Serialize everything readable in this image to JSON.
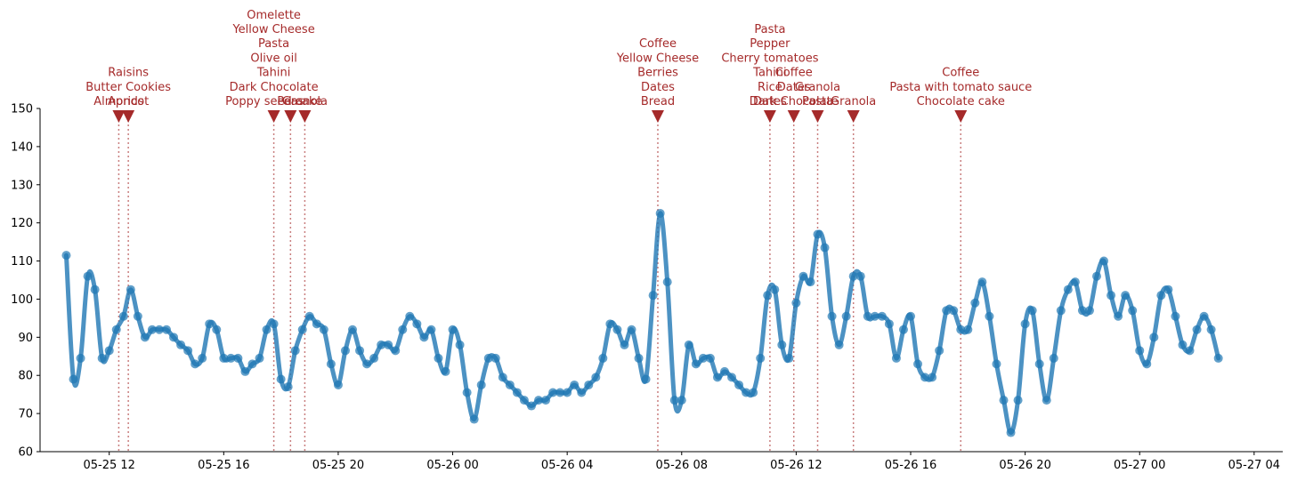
{
  "chart_data": {
    "type": "line",
    "title": "",
    "xlabel": "",
    "ylabel": "",
    "ylim": [
      60,
      150
    ],
    "xlim": [
      "2025-05-25T09:35",
      "2025-05-27T05:00"
    ],
    "grid": false,
    "yticks": [
      "60",
      "70",
      "80",
      "90",
      "100",
      "110",
      "120",
      "130",
      "140",
      "150"
    ],
    "xticks": [
      {
        "t": "2025-05-25T12:00",
        "label": "05-25 12"
      },
      {
        "t": "2025-05-25T16:00",
        "label": "05-25 16"
      },
      {
        "t": "2025-05-25T20:00",
        "label": "05-25 20"
      },
      {
        "t": "2025-05-26T00:00",
        "label": "05-26 00"
      },
      {
        "t": "2025-05-26T04:00",
        "label": "05-26 04"
      },
      {
        "t": "2025-05-26T08:00",
        "label": "05-26 08"
      },
      {
        "t": "2025-05-26T12:00",
        "label": "05-26 12"
      },
      {
        "t": "2025-05-26T16:00",
        "label": "05-26 16"
      },
      {
        "t": "2025-05-26T20:00",
        "label": "05-26 20"
      },
      {
        "t": "2025-05-27T00:00",
        "label": "05-27 00"
      },
      {
        "t": "2025-05-27T04:00",
        "label": "05-27 04"
      }
    ],
    "colors": {
      "line": "#1f77b4",
      "marker": "#a52a2a"
    },
    "series": [
      {
        "x": [
          "2025-05-25T10:30",
          "2025-05-25T10:45",
          "2025-05-25T11:00",
          "2025-05-25T11:15",
          "2025-05-25T11:30",
          "2025-05-25T11:45",
          "2025-05-25T12:00",
          "2025-05-25T12:15",
          "2025-05-25T12:30",
          "2025-05-25T12:45",
          "2025-05-25T13:00",
          "2025-05-25T13:15",
          "2025-05-25T13:30",
          "2025-05-25T13:45",
          "2025-05-25T14:00",
          "2025-05-25T14:15",
          "2025-05-25T14:30",
          "2025-05-25T14:45",
          "2025-05-25T15:00",
          "2025-05-25T15:15",
          "2025-05-25T15:30",
          "2025-05-25T15:45",
          "2025-05-25T16:00",
          "2025-05-25T16:15",
          "2025-05-25T16:30",
          "2025-05-25T16:45",
          "2025-05-25T17:00",
          "2025-05-25T17:15",
          "2025-05-25T17:30",
          "2025-05-25T17:45",
          "2025-05-25T18:00",
          "2025-05-25T18:15",
          "2025-05-25T18:30",
          "2025-05-25T18:45",
          "2025-05-25T19:00",
          "2025-05-25T19:15",
          "2025-05-25T19:30",
          "2025-05-25T19:45",
          "2025-05-25T20:00",
          "2025-05-25T20:15",
          "2025-05-25T20:30",
          "2025-05-25T20:45",
          "2025-05-25T21:00",
          "2025-05-25T21:15",
          "2025-05-25T21:30",
          "2025-05-25T21:45",
          "2025-05-25T22:00",
          "2025-05-25T22:15",
          "2025-05-25T22:30",
          "2025-05-25T22:45",
          "2025-05-25T23:00",
          "2025-05-25T23:15",
          "2025-05-25T23:30",
          "2025-05-25T23:45",
          "2025-05-26T00:00",
          "2025-05-26T00:15",
          "2025-05-26T00:30",
          "2025-05-26T00:45",
          "2025-05-26T01:00",
          "2025-05-26T01:15",
          "2025-05-26T01:30",
          "2025-05-26T01:45",
          "2025-05-26T02:00",
          "2025-05-26T02:15",
          "2025-05-26T02:30",
          "2025-05-26T02:45",
          "2025-05-26T03:00",
          "2025-05-26T03:15",
          "2025-05-26T03:30",
          "2025-05-26T03:45",
          "2025-05-26T04:00",
          "2025-05-26T04:15",
          "2025-05-26T04:30",
          "2025-05-26T04:45",
          "2025-05-26T05:00",
          "2025-05-26T05:15",
          "2025-05-26T05:30",
          "2025-05-26T05:45",
          "2025-05-26T06:00",
          "2025-05-26T06:15",
          "2025-05-26T06:30",
          "2025-05-26T06:45",
          "2025-05-26T07:00",
          "2025-05-26T07:15",
          "2025-05-26T07:30",
          "2025-05-26T07:45",
          "2025-05-26T08:00",
          "2025-05-26T08:15",
          "2025-05-26T08:30",
          "2025-05-26T08:45",
          "2025-05-26T09:00",
          "2025-05-26T09:15",
          "2025-05-26T09:30",
          "2025-05-26T09:45",
          "2025-05-26T10:00",
          "2025-05-26T10:15",
          "2025-05-26T10:30",
          "2025-05-26T10:45",
          "2025-05-26T11:00",
          "2025-05-26T11:15",
          "2025-05-26T11:30",
          "2025-05-26T11:45",
          "2025-05-26T12:00",
          "2025-05-26T12:15",
          "2025-05-26T12:30",
          "2025-05-26T12:45",
          "2025-05-26T13:00",
          "2025-05-26T13:15",
          "2025-05-26T13:30",
          "2025-05-26T13:45",
          "2025-05-26T14:00",
          "2025-05-26T14:15",
          "2025-05-26T14:30",
          "2025-05-26T14:45",
          "2025-05-26T15:00",
          "2025-05-26T15:15",
          "2025-05-26T15:30",
          "2025-05-26T15:45",
          "2025-05-26T16:00",
          "2025-05-26T16:15",
          "2025-05-26T16:30",
          "2025-05-26T16:45",
          "2025-05-26T17:00",
          "2025-05-26T17:15",
          "2025-05-26T17:30",
          "2025-05-26T17:45",
          "2025-05-26T18:00",
          "2025-05-26T18:15",
          "2025-05-26T18:30",
          "2025-05-26T18:45",
          "2025-05-26T19:00",
          "2025-05-26T19:15",
          "2025-05-26T19:30",
          "2025-05-26T19:45",
          "2025-05-26T20:00",
          "2025-05-26T20:15",
          "2025-05-26T20:30",
          "2025-05-26T20:45",
          "2025-05-26T21:00",
          "2025-05-26T21:15",
          "2025-05-26T21:30",
          "2025-05-26T21:45",
          "2025-05-26T22:00",
          "2025-05-26T22:15",
          "2025-05-26T22:30",
          "2025-05-26T22:45",
          "2025-05-26T23:00",
          "2025-05-26T23:15",
          "2025-05-26T23:30",
          "2025-05-26T23:45",
          "2025-05-27T00:00",
          "2025-05-27T00:15",
          "2025-05-27T00:30",
          "2025-05-27T00:45",
          "2025-05-27T01:00",
          "2025-05-27T01:15",
          "2025-05-27T01:30",
          "2025-05-27T01:45",
          "2025-05-27T02:00",
          "2025-05-27T02:15",
          "2025-05-27T02:30",
          "2025-05-27T02:45"
        ],
        "y": [
          111.5,
          79,
          84.5,
          106,
          102.5,
          84.5,
          86.5,
          92,
          95.5,
          102.5,
          95.5,
          90,
          92,
          92,
          92,
          90,
          88,
          86.5,
          83,
          84.5,
          93.5,
          92,
          84.5,
          84.5,
          84.5,
          81,
          83,
          84.5,
          92,
          93.5,
          79,
          77,
          86.5,
          92,
          95.5,
          93.5,
          92,
          83,
          77.5,
          86.5,
          92,
          86.5,
          83,
          84.5,
          88,
          88,
          86.5,
          92,
          95.5,
          93.5,
          90,
          92,
          84.5,
          81,
          92,
          88,
          75.5,
          68.5,
          77.5,
          84.5,
          84.5,
          79.5,
          77.5,
          75.5,
          73.5,
          72,
          73.5,
          73.5,
          75.5,
          75.5,
          75.5,
          77.5,
          75.5,
          77.5,
          79.5,
          84.5,
          93.5,
          92,
          88,
          92,
          84.5,
          79,
          101,
          122.5,
          104.5,
          73.5,
          73.5,
          88,
          83,
          84.5,
          84.5,
          79.5,
          81,
          79.5,
          77.5,
          75.5,
          75.5,
          84.5,
          101,
          102.5,
          88,
          84.5,
          99,
          106,
          104.5,
          117,
          113.5,
          95.5,
          88,
          95.5,
          106,
          106,
          95.5,
          95.5,
          95.5,
          93.5,
          84.5,
          92,
          95.5,
          83,
          79.5,
          79.5,
          86.5,
          97,
          97,
          92,
          92,
          99,
          104.5,
          95.5,
          83,
          73.5,
          65,
          73.5,
          93.5,
          97,
          83,
          73.5,
          84.5,
          97,
          102.5,
          104.5,
          97,
          97,
          106,
          110,
          101,
          95.5,
          101,
          97,
          86.5,
          83,
          90,
          101,
          102.5,
          95.5,
          88,
          86.5,
          92,
          95.5,
          92,
          84.5
        ]
      }
    ],
    "meals": [
      {
        "t": "2025-05-25T12:20",
        "items": [
          "Almonds"
        ]
      },
      {
        "t": "2025-05-25T12:40",
        "items": [
          "Raisins",
          "Butter Cookies",
          "Apricot"
        ]
      },
      {
        "t": "2025-05-25T17:45",
        "items": [
          "Omelette",
          "Yellow Cheese",
          "Pasta",
          "Olive oil",
          "Tahini",
          "Dark Chocolate",
          "Poppy seed cake"
        ]
      },
      {
        "t": "2025-05-25T18:20",
        "items": [
          "Peas"
        ]
      },
      {
        "t": "2025-05-25T18:50",
        "items": [
          "Granola"
        ]
      },
      {
        "t": "2025-05-26T07:10",
        "items": [
          "Coffee",
          "Yellow Cheese",
          "Berries",
          "Dates",
          "Bread"
        ]
      },
      {
        "t": "2025-05-26T11:05",
        "items": [
          "Pasta",
          "Pepper",
          "Cherry tomatoes",
          "Tahini",
          "Rice",
          "Dates"
        ]
      },
      {
        "t": "2025-05-26T11:55",
        "items": [
          "Coffee",
          "Dates",
          "Dark Chocolate"
        ]
      },
      {
        "t": "2025-05-26T12:45",
        "items": [
          "Granola",
          "Pasta"
        ]
      },
      {
        "t": "2025-05-26T14:00",
        "items": [
          "Granola"
        ]
      },
      {
        "t": "2025-05-26T17:45",
        "items": [
          "Coffee",
          "Pasta with tomato sauce",
          "Chocolate cake"
        ]
      }
    ]
  }
}
